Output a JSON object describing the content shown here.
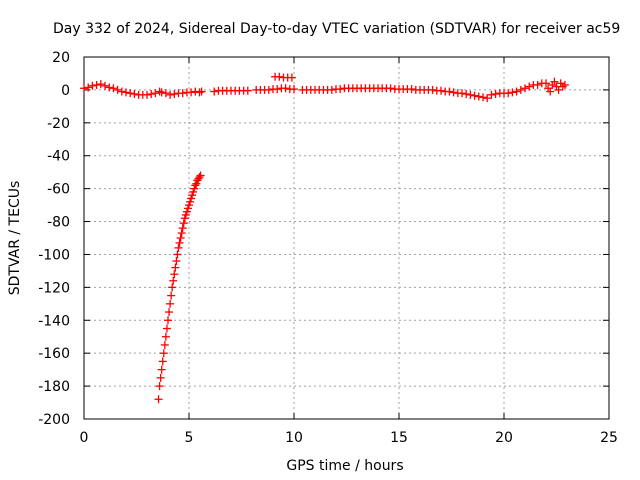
{
  "chart_data": {
    "type": "scatter",
    "title": "Day 332 of 2024, Sidereal Day-to-day VTEC variation (SDTVAR) for receiver ac59",
    "xlabel": "GPS time / hours",
    "ylabel": "SDTVAR / TECUs",
    "xlim": [
      0,
      25
    ],
    "ylim": [
      -200,
      20
    ],
    "xticks": [
      0,
      5,
      10,
      15,
      20,
      25
    ],
    "yticks": [
      20,
      0,
      -20,
      -40,
      -60,
      -80,
      -100,
      -120,
      -140,
      -160,
      -180,
      -200
    ],
    "grid": true,
    "marker": "+",
    "color": "#ff0000",
    "series": [
      {
        "name": "main",
        "points": [
          [
            0.0,
            1
          ],
          [
            0.2,
            1.5
          ],
          [
            0.4,
            2.5
          ],
          [
            0.6,
            3
          ],
          [
            0.8,
            3.5
          ],
          [
            1.0,
            2.5
          ],
          [
            1.2,
            1.5
          ],
          [
            1.4,
            1
          ],
          [
            1.6,
            0
          ],
          [
            1.8,
            -1
          ],
          [
            2.0,
            -1.5
          ],
          [
            2.2,
            -2
          ],
          [
            2.4,
            -2.5
          ],
          [
            2.6,
            -3
          ],
          [
            2.8,
            -3
          ],
          [
            3.0,
            -3
          ],
          [
            3.2,
            -2.5
          ],
          [
            3.4,
            -2
          ],
          [
            3.6,
            -1
          ],
          [
            3.7,
            -1.5
          ],
          [
            3.9,
            -2
          ],
          [
            4.1,
            -3
          ],
          [
            4.3,
            -2.5
          ],
          [
            4.5,
            -2
          ],
          [
            4.7,
            -2
          ],
          [
            4.9,
            -1.5
          ],
          [
            5.1,
            -1.5
          ],
          [
            5.3,
            -1
          ],
          [
            5.5,
            -1.5
          ],
          [
            5.6,
            -1
          ],
          [
            6.2,
            -1
          ],
          [
            6.4,
            -0.5
          ],
          [
            6.6,
            -0.5
          ],
          [
            6.8,
            -0.5
          ],
          [
            7.0,
            -0.5
          ],
          [
            7.2,
            -0.5
          ],
          [
            7.4,
            -0.5
          ],
          [
            7.6,
            -0.5
          ],
          [
            7.8,
            -0.5
          ],
          [
            8.2,
            0
          ],
          [
            8.4,
            0
          ],
          [
            8.6,
            0
          ],
          [
            8.8,
            0
          ],
          [
            9.0,
            0.5
          ],
          [
            9.2,
            0.5
          ],
          [
            9.4,
            1
          ],
          [
            9.6,
            1
          ],
          [
            9.8,
            0.5
          ],
          [
            10.0,
            0.5
          ],
          [
            9.1,
            8
          ],
          [
            9.3,
            8
          ],
          [
            9.5,
            7.5
          ],
          [
            9.7,
            7.5
          ],
          [
            9.9,
            7.5
          ],
          [
            10.4,
            0
          ],
          [
            10.6,
            0
          ],
          [
            10.8,
            0
          ],
          [
            11.0,
            0
          ],
          [
            11.2,
            0
          ],
          [
            11.4,
            0
          ],
          [
            11.6,
            0
          ],
          [
            11.8,
            0
          ],
          [
            12.0,
            0.5
          ],
          [
            12.2,
            0.5
          ],
          [
            12.4,
            1
          ],
          [
            12.6,
            1
          ],
          [
            12.8,
            1
          ],
          [
            13.0,
            1
          ],
          [
            13.2,
            1
          ],
          [
            13.4,
            1
          ],
          [
            13.6,
            1
          ],
          [
            13.8,
            1
          ],
          [
            14.0,
            1
          ],
          [
            14.2,
            1
          ],
          [
            14.4,
            1
          ],
          [
            14.6,
            1
          ],
          [
            14.8,
            0.5
          ],
          [
            15.0,
            0.5
          ],
          [
            15.2,
            0.5
          ],
          [
            15.4,
            0.5
          ],
          [
            15.6,
            0.5
          ],
          [
            15.8,
            0
          ],
          [
            16.0,
            0
          ],
          [
            16.2,
            0
          ],
          [
            16.4,
            0
          ],
          [
            16.6,
            0
          ],
          [
            16.8,
            -0.5
          ],
          [
            17.0,
            -0.5
          ],
          [
            17.2,
            -1
          ],
          [
            17.4,
            -1
          ],
          [
            17.6,
            -1.5
          ],
          [
            17.8,
            -2
          ],
          [
            18.0,
            -2
          ],
          [
            18.2,
            -2.5
          ],
          [
            18.4,
            -3
          ],
          [
            18.6,
            -3.5
          ],
          [
            18.8,
            -4
          ],
          [
            19.0,
            -4.5
          ],
          [
            19.2,
            -5
          ],
          [
            19.4,
            -3
          ],
          [
            19.6,
            -2.5
          ],
          [
            19.8,
            -2
          ],
          [
            20.0,
            -2
          ],
          [
            20.2,
            -2
          ],
          [
            20.4,
            -1.5
          ],
          [
            20.6,
            -1
          ],
          [
            20.8,
            0
          ],
          [
            21.0,
            1
          ],
          [
            21.2,
            2
          ],
          [
            21.4,
            3
          ],
          [
            21.6,
            3
          ],
          [
            21.8,
            4
          ],
          [
            22.0,
            4
          ],
          [
            22.1,
            1
          ],
          [
            22.2,
            -1
          ],
          [
            22.3,
            3
          ],
          [
            22.4,
            5
          ],
          [
            22.5,
            2
          ],
          [
            22.6,
            0
          ],
          [
            22.7,
            4
          ],
          [
            22.8,
            2
          ],
          [
            22.9,
            3
          ]
        ]
      },
      {
        "name": "dropout",
        "points": [
          [
            3.55,
            -188
          ],
          [
            3.6,
            -180
          ],
          [
            3.65,
            -175
          ],
          [
            3.7,
            -170
          ],
          [
            3.75,
            -165
          ],
          [
            3.8,
            -160
          ],
          [
            3.85,
            -155
          ],
          [
            3.9,
            -150
          ],
          [
            3.95,
            -145
          ],
          [
            4.0,
            -140
          ],
          [
            4.05,
            -135
          ],
          [
            4.1,
            -130
          ],
          [
            4.15,
            -125
          ],
          [
            4.2,
            -120
          ],
          [
            4.25,
            -116
          ],
          [
            4.3,
            -112
          ],
          [
            4.35,
            -108
          ],
          [
            4.4,
            -104
          ],
          [
            4.45,
            -100
          ],
          [
            4.5,
            -96
          ],
          [
            4.55,
            -93
          ],
          [
            4.6,
            -90
          ],
          [
            4.65,
            -87
          ],
          [
            4.7,
            -84
          ],
          [
            4.75,
            -81
          ],
          [
            4.8,
            -78
          ],
          [
            4.85,
            -76
          ],
          [
            4.9,
            -74
          ],
          [
            4.95,
            -72
          ],
          [
            5.0,
            -70
          ],
          [
            5.05,
            -68
          ],
          [
            5.1,
            -66
          ],
          [
            5.15,
            -64
          ],
          [
            5.2,
            -62
          ],
          [
            5.25,
            -60
          ],
          [
            5.3,
            -58
          ],
          [
            5.35,
            -57
          ],
          [
            5.4,
            -55
          ],
          [
            5.45,
            -54
          ],
          [
            5.5,
            -53
          ],
          [
            5.55,
            -52
          ]
        ]
      }
    ]
  }
}
